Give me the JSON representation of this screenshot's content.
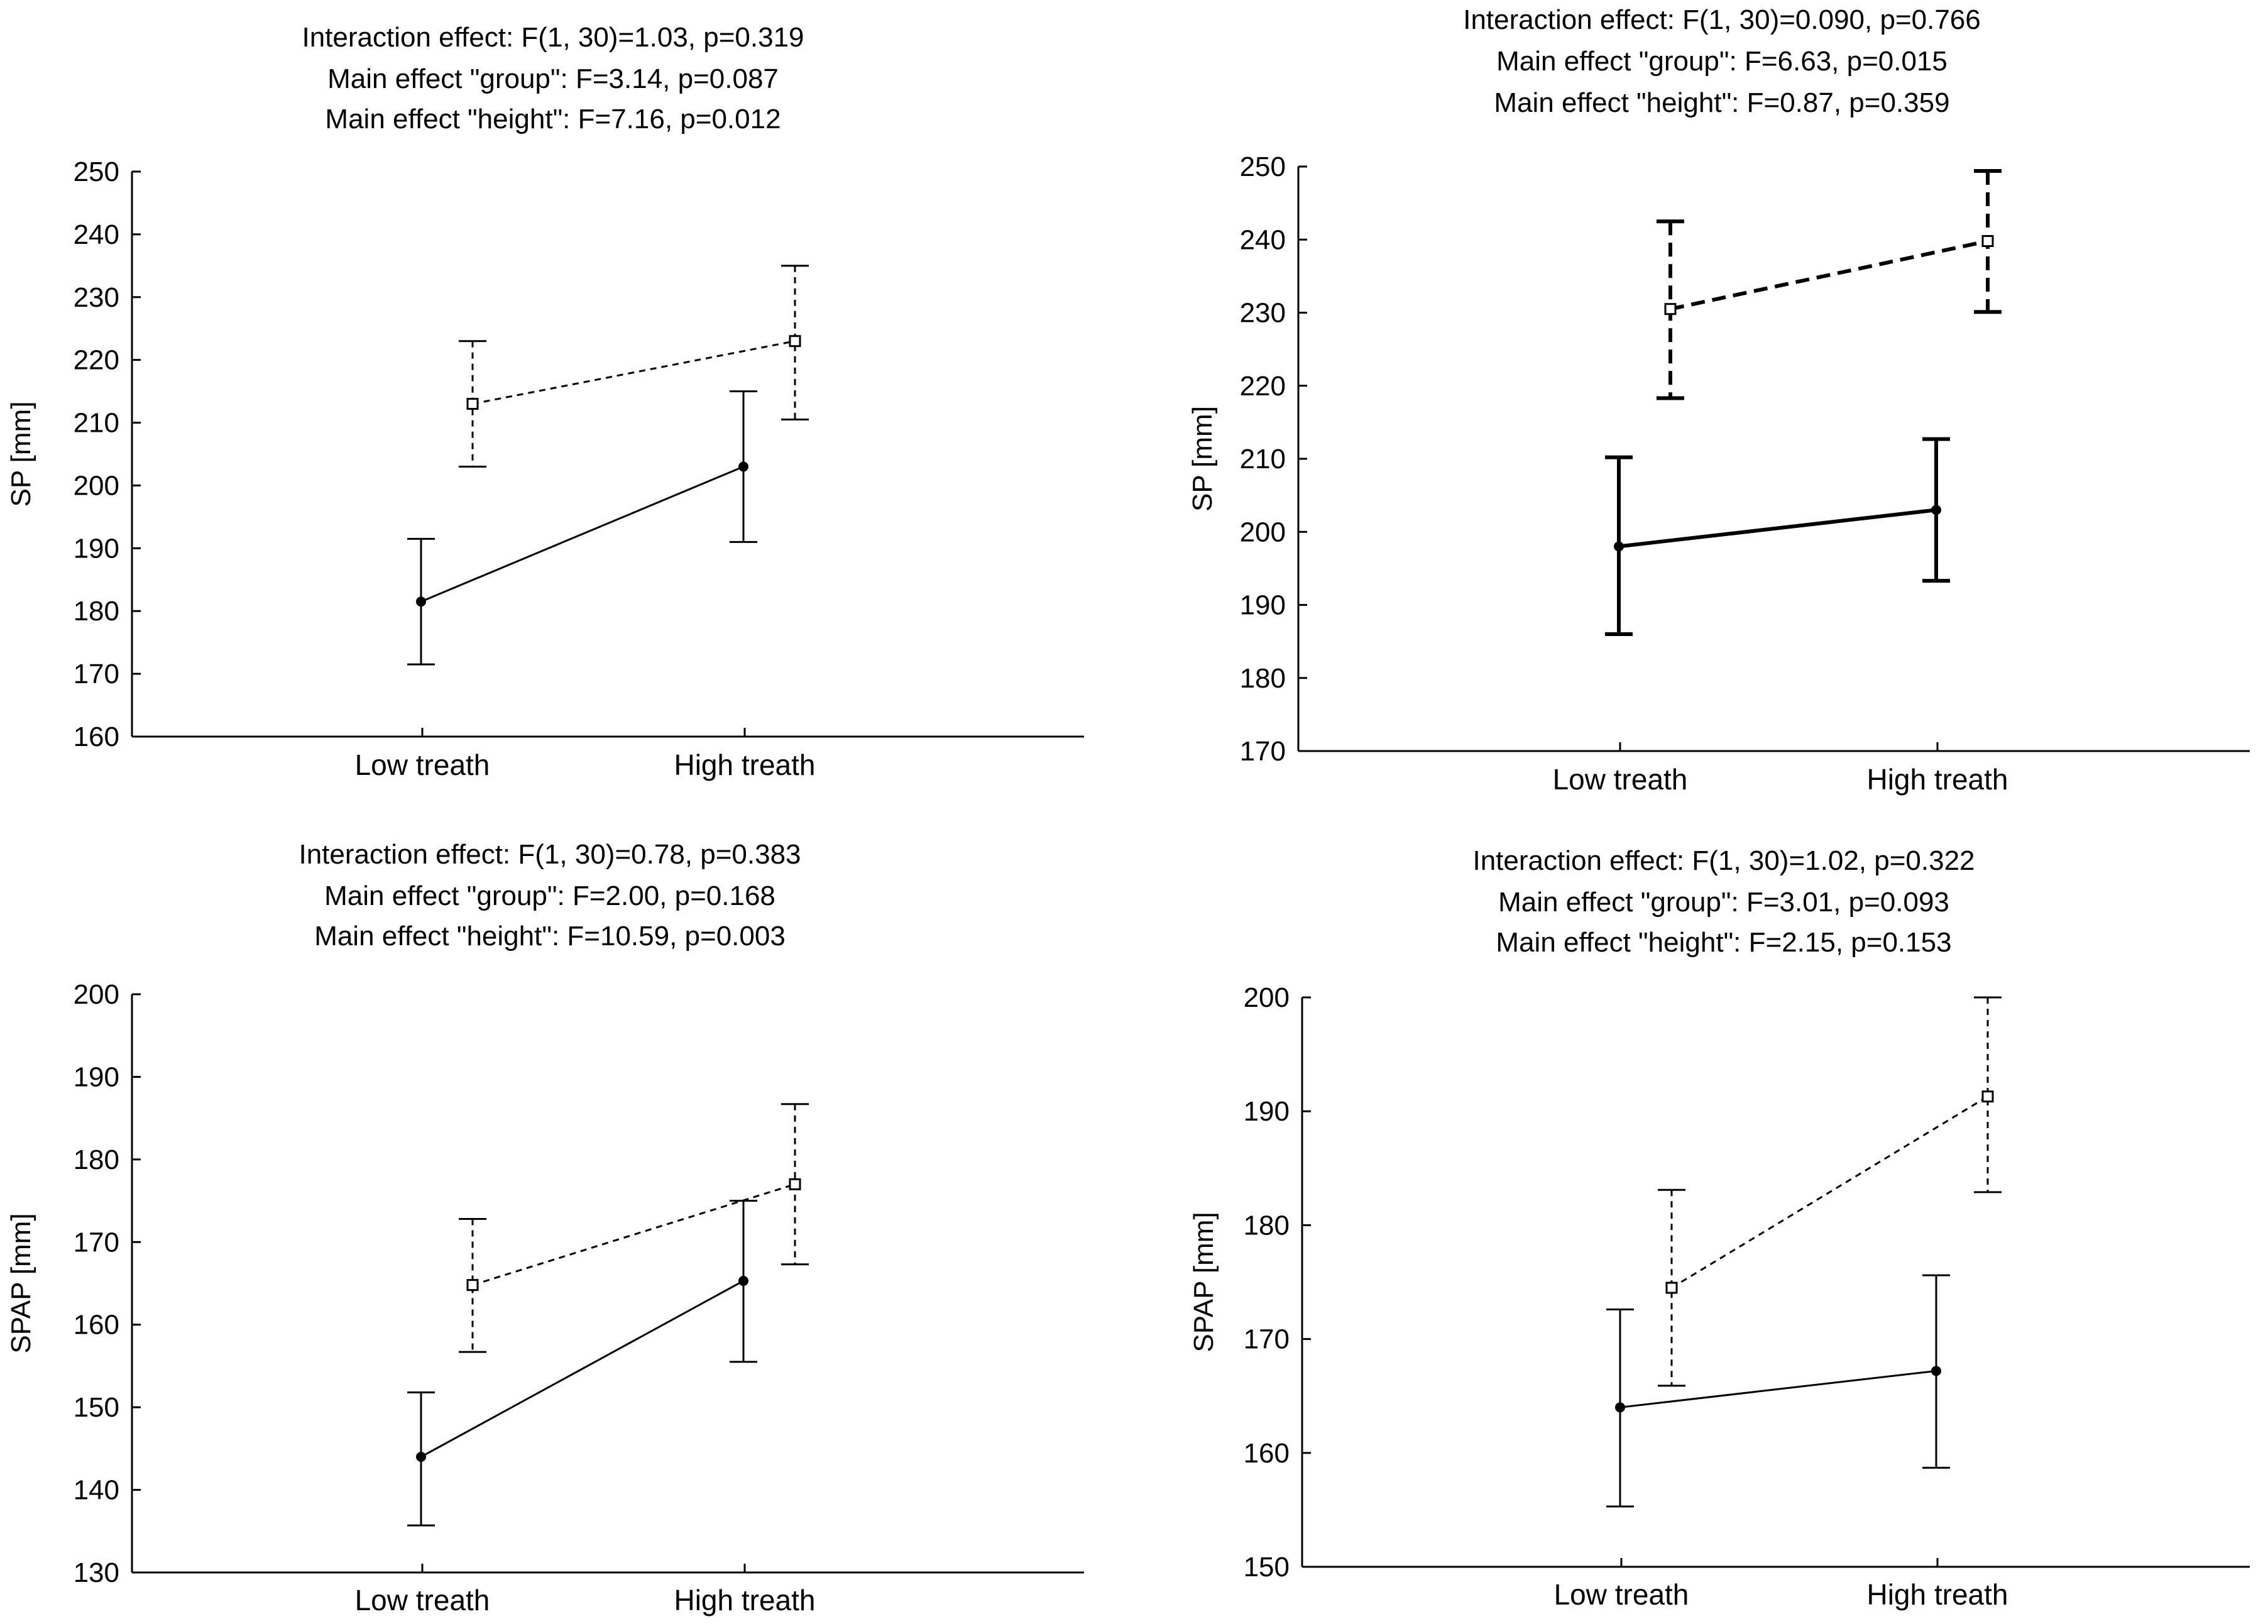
{
  "chart_data": [
    {
      "type": "line",
      "title": [
        "Interaction effect: F(1, 30)=1.03, p=0.319",
        "Main effect \"group\": F=3.14, p=0.087",
        "Main effect \"height\": F=7.16, p=0.012"
      ],
      "xlabel": "",
      "ylabel": "SP [mm]",
      "categories": [
        "Low treath",
        "High treath"
      ],
      "ylim": [
        160,
        250
      ],
      "yticks": [
        160,
        170,
        180,
        190,
        200,
        210,
        220,
        230,
        240,
        250
      ],
      "series": [
        {
          "name": "solid",
          "style": "solid",
          "marker": "circle",
          "values": [
            181.5,
            203
          ],
          "errors_low": [
            171.5,
            191
          ],
          "errors_high": [
            191.5,
            215
          ]
        },
        {
          "name": "dashed",
          "style": "dashed",
          "marker": "square",
          "values": [
            213,
            223
          ],
          "errors_low": [
            203,
            210.5
          ],
          "errors_high": [
            223,
            235
          ]
        }
      ]
    },
    {
      "type": "line",
      "title": [
        "Interaction effect: F(1, 30)=0.090, p=0.766",
        "Main effect \"group\": F=6.63, p=0.015",
        "Main effect \"height\": F=0.87, p=0.359"
      ],
      "xlabel": "",
      "ylabel": "SP [mm]",
      "categories": [
        "Low treath",
        "High treath"
      ],
      "ylim": [
        170,
        250
      ],
      "yticks": [
        170,
        180,
        190,
        200,
        210,
        220,
        230,
        240,
        250
      ],
      "series": [
        {
          "name": "solid",
          "style": "solid",
          "marker": "circle",
          "values": [
            198,
            203
          ],
          "errors_low": [
            186,
            193.3
          ],
          "errors_high": [
            210.2,
            212.7
          ]
        },
        {
          "name": "dashed",
          "style": "dashed",
          "marker": "square",
          "values": [
            230.5,
            239.8
          ],
          "errors_low": [
            218.3,
            230.1
          ],
          "errors_high": [
            242.5,
            249.4
          ]
        }
      ]
    },
    {
      "type": "line",
      "title": [
        "Interaction effect: F(1, 30)=0.78, p=0.383",
        "Main effect \"group\": F=2.00, p=0.168",
        "Main effect \"height\": F=10.59, p=0.003"
      ],
      "xlabel": "",
      "ylabel": "SPAP [mm]",
      "categories": [
        "Low treath",
        "High treath"
      ],
      "ylim": [
        130,
        200
      ],
      "yticks": [
        130,
        140,
        150,
        160,
        170,
        180,
        190,
        200
      ],
      "series": [
        {
          "name": "solid",
          "style": "solid",
          "marker": "circle",
          "values": [
            144,
            165.3
          ],
          "errors_low": [
            135.7,
            155.5
          ],
          "errors_high": [
            151.8,
            175
          ]
        },
        {
          "name": "dashed",
          "style": "dashed",
          "marker": "square",
          "values": [
            164.8,
            177
          ],
          "errors_low": [
            156.7,
            167.3
          ],
          "errors_high": [
            172.8,
            186.7
          ]
        }
      ]
    },
    {
      "type": "line",
      "title": [
        "Interaction effect: F(1, 30)=1.02, p=0.322",
        "Main effect \"group\": F=3.01, p=0.093",
        "Main effect \"height\": F=2.15, p=0.153"
      ],
      "xlabel": "",
      "ylabel": "SPAP [mm]",
      "categories": [
        "Low treath",
        "High treath"
      ],
      "ylim": [
        150,
        200
      ],
      "yticks": [
        150,
        160,
        170,
        180,
        190,
        200
      ],
      "series": [
        {
          "name": "solid",
          "style": "solid",
          "marker": "circle",
          "values": [
            164,
            167.2
          ],
          "errors_low": [
            155.3,
            158.7
          ],
          "errors_high": [
            172.6,
            175.6
          ]
        },
        {
          "name": "dashed",
          "style": "dashed",
          "marker": "square",
          "values": [
            174.5,
            191.3
          ],
          "errors_low": [
            165.9,
            182.9
          ],
          "errors_high": [
            183.1,
            200
          ]
        }
      ]
    }
  ]
}
